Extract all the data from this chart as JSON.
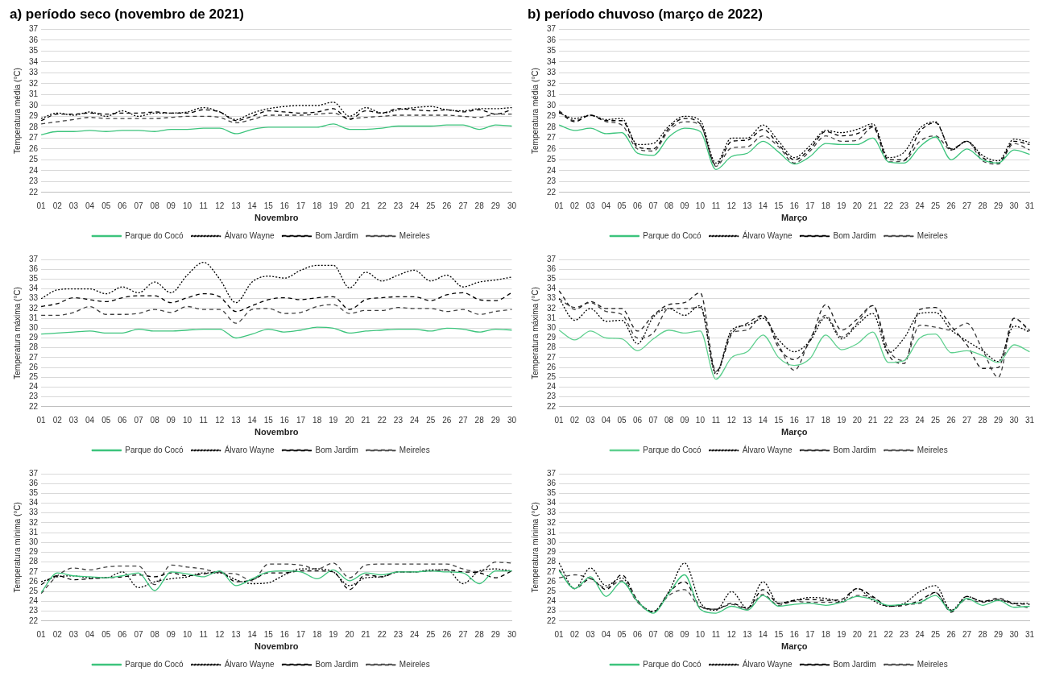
{
  "chart_data": [
    {
      "type": "line",
      "title": "a) período seco (novembro de 2021)",
      "xlabel": "Novembro",
      "ylabel": "Temperatura média (°C)",
      "categories": [
        "01",
        "02",
        "03",
        "04",
        "05",
        "06",
        "07",
        "08",
        "09",
        "10",
        "11",
        "12",
        "13",
        "14",
        "15",
        "16",
        "17",
        "18",
        "19",
        "20",
        "21",
        "22",
        "23",
        "24",
        "25",
        "26",
        "27",
        "28",
        "29",
        "30"
      ],
      "ylim": [
        22,
        37
      ],
      "yticks": [
        22,
        23,
        24,
        25,
        26,
        27,
        28,
        29,
        30,
        31,
        32,
        33,
        34,
        35,
        36,
        37
      ],
      "grid": "y",
      "legend": "bottom",
      "marker": "none",
      "series": [
        {
          "name": "Parque do Cocó",
          "color": "#3cc47c",
          "line_style": "solid",
          "values": [
            27.3,
            27.6,
            27.6,
            27.7,
            27.6,
            27.7,
            27.7,
            27.6,
            27.8,
            27.8,
            27.9,
            27.9,
            27.4,
            27.8,
            28.0,
            28.0,
            28.0,
            28.0,
            28.3,
            27.8,
            27.8,
            27.9,
            28.1,
            28.1,
            28.1,
            28.2,
            28.2,
            27.8,
            28.2,
            28.1
          ]
        },
        {
          "name": "Álvaro Wayne",
          "color": "#000000",
          "line_style": "dotted",
          "values": [
            28.8,
            29.3,
            29.1,
            29.4,
            29.0,
            29.5,
            29.0,
            29.3,
            29.3,
            29.4,
            29.8,
            29.4,
            28.7,
            29.3,
            29.7,
            29.9,
            30.0,
            30.0,
            30.3,
            29.0,
            29.8,
            29.3,
            29.6,
            29.8,
            29.9,
            29.6,
            29.5,
            29.7,
            29.7,
            29.8
          ]
        },
        {
          "name": "Bom Jardim",
          "color": "#000000",
          "line_style": "dashed",
          "values": [
            28.6,
            29.2,
            29.2,
            29.3,
            29.2,
            29.3,
            29.3,
            29.4,
            29.3,
            29.3,
            29.6,
            29.4,
            28.6,
            29.0,
            29.5,
            29.4,
            29.3,
            29.4,
            29.7,
            28.7,
            29.5,
            29.3,
            29.7,
            29.6,
            29.5,
            29.6,
            29.4,
            29.6,
            29.2,
            29.6
          ]
        },
        {
          "name": "Meireles",
          "color": "#404040",
          "line_style": "dashed",
          "values": [
            28.3,
            28.5,
            28.7,
            28.9,
            28.8,
            28.8,
            28.8,
            28.8,
            28.9,
            29.0,
            29.0,
            28.9,
            28.4,
            28.7,
            29.1,
            29.1,
            29.1,
            29.2,
            29.3,
            28.8,
            28.9,
            29.0,
            29.1,
            29.1,
            29.1,
            29.1,
            29.0,
            28.9,
            29.2,
            29.2
          ]
        }
      ]
    },
    {
      "type": "line",
      "title": "b) período chuvoso (março de 2022)",
      "xlabel": "Março",
      "ylabel": "Temperatura média (°C)",
      "categories": [
        "01",
        "02",
        "03",
        "04",
        "05",
        "06",
        "07",
        "08",
        "09",
        "10",
        "11",
        "12",
        "13",
        "14",
        "15",
        "16",
        "17",
        "18",
        "19",
        "20",
        "21",
        "22",
        "23",
        "24",
        "25",
        "26",
        "27",
        "28",
        "29",
        "30",
        "31"
      ],
      "ylim": [
        22,
        37
      ],
      "yticks": [
        22,
        23,
        24,
        25,
        26,
        27,
        28,
        29,
        30,
        31,
        32,
        33,
        34,
        35,
        36,
        37
      ],
      "grid": "y",
      "legend": "bottom",
      "marker": "none",
      "series": [
        {
          "name": "Parque do Cocó",
          "color": "#3cc47c",
          "line_style": "solid",
          "values": [
            28.2,
            27.7,
            27.9,
            27.4,
            27.5,
            25.6,
            25.4,
            27.1,
            27.9,
            27.6,
            24.1,
            25.3,
            25.6,
            26.7,
            25.7,
            24.6,
            25.3,
            26.5,
            26.4,
            26.4,
            27.0,
            24.8,
            24.7,
            26.2,
            27.1,
            25.0,
            26.0,
            25.0,
            24.7,
            25.9,
            25.5
          ]
        },
        {
          "name": "Álvaro Wayne",
          "color": "#000000",
          "line_style": "dotted",
          "values": [
            29.3,
            28.8,
            29.1,
            28.7,
            28.8,
            26.4,
            26.5,
            28.1,
            29.0,
            28.6,
            24.7,
            27.0,
            27.0,
            28.2,
            26.7,
            25.2,
            26.3,
            27.7,
            27.5,
            27.8,
            28.3,
            25.2,
            25.7,
            27.9,
            28.5,
            25.9,
            26.7,
            25.4,
            24.9,
            26.9,
            26.6
          ]
        },
        {
          "name": "Bom Jardim",
          "color": "#000000",
          "line_style": "dashed",
          "values": [
            29.4,
            28.5,
            29.1,
            28.6,
            28.6,
            26.2,
            26.0,
            27.9,
            28.8,
            28.3,
            24.5,
            26.7,
            26.8,
            27.8,
            26.4,
            25.0,
            26.0,
            27.6,
            27.2,
            27.4,
            28.1,
            25.0,
            25.0,
            27.6,
            28.4,
            26.0,
            26.7,
            25.2,
            24.7,
            26.7,
            26.4
          ]
        },
        {
          "name": "Meireles",
          "color": "#404040",
          "line_style": "dashed",
          "values": [
            29.5,
            28.6,
            29.1,
            28.5,
            28.2,
            26.0,
            25.8,
            27.7,
            28.5,
            28.2,
            24.4,
            26.1,
            26.2,
            27.2,
            26.2,
            24.7,
            25.8,
            27.2,
            26.7,
            26.8,
            28.0,
            24.8,
            24.9,
            26.7,
            27.2,
            25.9,
            26.7,
            24.9,
            24.6,
            26.5,
            25.9
          ]
        }
      ]
    },
    {
      "type": "line",
      "xlabel": "Novembro",
      "ylabel": "Temperatura máxima (°C)",
      "categories": [
        "01",
        "02",
        "03",
        "04",
        "05",
        "06",
        "07",
        "08",
        "09",
        "10",
        "11",
        "12",
        "13",
        "14",
        "15",
        "16",
        "17",
        "18",
        "19",
        "20",
        "21",
        "22",
        "23",
        "24",
        "25",
        "26",
        "27",
        "28",
        "29",
        "30"
      ],
      "ylim": [
        22,
        37
      ],
      "yticks": [
        22,
        23,
        24,
        25,
        26,
        27,
        28,
        29,
        30,
        31,
        32,
        33,
        34,
        35,
        36,
        37
      ],
      "grid": "y",
      "legend": "bottom",
      "marker": "none",
      "series": [
        {
          "name": "Parque do Cocó",
          "color": "#3cc47c",
          "line_style": "solid",
          "values": [
            29.4,
            29.5,
            29.6,
            29.7,
            29.5,
            29.5,
            29.9,
            29.7,
            29.7,
            29.8,
            29.9,
            29.9,
            29.0,
            29.4,
            29.9,
            29.6,
            29.8,
            30.1,
            30.0,
            29.5,
            29.7,
            29.8,
            29.9,
            29.9,
            29.7,
            30.0,
            29.9,
            29.6,
            29.9,
            29.8
          ]
        },
        {
          "name": "Álvaro Wayne",
          "color": "#000000",
          "line_style": "dotted",
          "values": [
            33.0,
            33.9,
            34.0,
            34.0,
            33.5,
            34.2,
            33.6,
            34.7,
            33.6,
            35.4,
            36.7,
            35.0,
            32.6,
            34.7,
            35.3,
            35.1,
            35.9,
            36.4,
            36.4,
            34.1,
            35.7,
            34.8,
            35.4,
            35.9,
            34.8,
            35.4,
            34.2,
            34.7,
            34.9,
            35.2
          ]
        },
        {
          "name": "Bom Jardim",
          "color": "#000000",
          "line_style": "dashed",
          "values": [
            32.2,
            32.5,
            33.1,
            32.9,
            32.7,
            33.1,
            33.3,
            33.3,
            32.6,
            33.1,
            33.5,
            33.2,
            31.7,
            32.3,
            32.9,
            33.1,
            32.9,
            33.1,
            33.2,
            31.9,
            32.9,
            33.1,
            33.2,
            33.2,
            32.8,
            33.4,
            33.6,
            32.9,
            32.8,
            33.6
          ]
        },
        {
          "name": "Meireles",
          "color": "#404040",
          "line_style": "dashed",
          "values": [
            31.3,
            31.3,
            31.6,
            32.2,
            31.4,
            31.4,
            31.5,
            31.9,
            31.6,
            32.2,
            31.9,
            31.9,
            30.5,
            31.9,
            32.0,
            31.5,
            31.6,
            32.2,
            32.4,
            31.5,
            31.8,
            31.8,
            32.1,
            32.0,
            32.0,
            31.7,
            31.9,
            31.4,
            31.7,
            31.9
          ]
        }
      ]
    },
    {
      "type": "line",
      "xlabel": "Março",
      "ylabel": "Temperatura máxima (°C)",
      "categories": [
        "01",
        "02",
        "03",
        "04",
        "05",
        "06",
        "07",
        "08",
        "09",
        "10",
        "11",
        "12",
        "13",
        "14",
        "15",
        "16",
        "17",
        "18",
        "19",
        "20",
        "21",
        "22",
        "23",
        "24",
        "25",
        "26",
        "27",
        "28",
        "29",
        "30",
        "31"
      ],
      "ylim": [
        22,
        37
      ],
      "yticks": [
        22,
        23,
        24,
        25,
        26,
        27,
        28,
        29,
        30,
        31,
        32,
        33,
        34,
        35,
        36,
        37
      ],
      "grid": "y",
      "legend": "bottom",
      "marker": "none",
      "series": [
        {
          "name": "Parque do Cocó",
          "color": "#5fd08f",
          "line_style": "solid",
          "values": [
            29.8,
            28.8,
            29.7,
            29.0,
            28.9,
            27.7,
            28.9,
            29.8,
            29.5,
            29.7,
            24.8,
            27.0,
            27.6,
            29.3,
            27.0,
            26.2,
            26.9,
            29.3,
            27.8,
            28.4,
            29.6,
            26.5,
            26.7,
            29.0,
            29.4,
            27.5,
            27.7,
            27.2,
            26.5,
            28.3,
            27.6
          ]
        },
        {
          "name": "Álvaro Wayne",
          "color": "#000000",
          "line_style": "dotted",
          "values": [
            33.0,
            30.8,
            32.0,
            30.7,
            30.8,
            28.4,
            31.1,
            32.0,
            31.3,
            32.3,
            25.3,
            29.8,
            30.3,
            31.0,
            28.8,
            27.6,
            28.7,
            31.1,
            28.9,
            30.3,
            31.5,
            27.5,
            29.0,
            31.5,
            31.6,
            29.8,
            28.7,
            27.7,
            26.6,
            30.2,
            29.6
          ]
        },
        {
          "name": "Bom Jardim",
          "color": "#202020",
          "line_style": "dashed",
          "values": [
            33.8,
            31.9,
            32.7,
            32.0,
            32.0,
            29.7,
            31.3,
            32.4,
            32.6,
            33.6,
            25.6,
            29.4,
            30.5,
            31.3,
            28.0,
            26.8,
            28.7,
            32.4,
            29.8,
            30.9,
            32.3,
            27.3,
            26.4,
            31.9,
            32.1,
            30.2,
            28.3,
            25.9,
            26.0,
            31.0,
            29.8
          ]
        },
        {
          "name": "Meireles",
          "color": "#404040",
          "line_style": "dashed",
          "values": [
            33.0,
            32.1,
            32.6,
            31.7,
            31.4,
            29.0,
            29.5,
            32.0,
            32.0,
            32.1,
            25.5,
            29.5,
            29.8,
            31.3,
            28.3,
            25.7,
            28.9,
            31.3,
            29.1,
            30.5,
            32.3,
            27.8,
            26.7,
            30.3,
            30.1,
            29.8,
            30.5,
            27.8,
            25.0,
            31.0,
            29.7
          ]
        }
      ]
    },
    {
      "type": "line",
      "xlabel": "Novembro",
      "ylabel": "Temperatura mínima (°C)",
      "categories": [
        "01",
        "02",
        "03",
        "04",
        "05",
        "06",
        "07",
        "08",
        "09",
        "10",
        "11",
        "12",
        "13",
        "14",
        "15",
        "16",
        "17",
        "18",
        "19",
        "20",
        "21",
        "22",
        "23",
        "24",
        "25",
        "26",
        "27",
        "28",
        "29",
        "30"
      ],
      "ylim": [
        22,
        37
      ],
      "yticks": [
        22,
        23,
        24,
        25,
        26,
        27,
        28,
        29,
        30,
        31,
        32,
        33,
        34,
        35,
        36,
        37
      ],
      "grid": "y",
      "legend": "bottom",
      "marker": "none",
      "series": [
        {
          "name": "Parque do Cocó",
          "color": "#3cc47c",
          "line_style": "solid",
          "values": [
            24.9,
            26.9,
            26.6,
            26.5,
            26.4,
            26.6,
            26.9,
            25.1,
            27.0,
            26.8,
            26.5,
            27.1,
            25.6,
            26.3,
            27.0,
            27.1,
            27.0,
            26.3,
            27.2,
            26.1,
            26.9,
            26.7,
            27.0,
            27.0,
            27.1,
            27.0,
            26.9,
            25.8,
            27.1,
            27.1
          ]
        },
        {
          "name": "Álvaro Wayne",
          "color": "#000000",
          "line_style": "dotted",
          "values": [
            26.0,
            26.5,
            26.6,
            26.4,
            26.4,
            27.0,
            25.4,
            26.0,
            26.3,
            26.5,
            26.9,
            26.9,
            26.2,
            25.8,
            25.9,
            26.7,
            27.3,
            27.3,
            27.0,
            25.6,
            26.4,
            26.5,
            27.0,
            27.0,
            27.2,
            27.2,
            25.8,
            27.1,
            27.3,
            27.1
          ]
        },
        {
          "name": "Bom Jardim",
          "color": "#000000",
          "line_style": "dashed",
          "values": [
            25.7,
            26.6,
            26.2,
            26.3,
            26.4,
            26.5,
            26.7,
            26.5,
            26.9,
            26.6,
            26.8,
            27.0,
            26.0,
            26.2,
            26.9,
            26.9,
            27.1,
            27.1,
            27.0,
            25.2,
            26.7,
            26.5,
            27.0,
            27.0,
            27.1,
            27.2,
            27.0,
            26.9,
            26.4,
            27.1
          ]
        },
        {
          "name": "Meireles",
          "color": "#404040",
          "line_style": "dashed",
          "values": [
            24.8,
            26.6,
            27.4,
            27.2,
            27.5,
            27.6,
            27.6,
            25.7,
            27.7,
            27.5,
            27.3,
            26.9,
            26.8,
            26.1,
            27.8,
            27.8,
            27.7,
            27.3,
            27.9,
            26.4,
            27.7,
            27.8,
            27.8,
            27.8,
            27.8,
            27.8,
            27.3,
            27.0,
            28.0,
            27.9
          ]
        }
      ]
    },
    {
      "type": "line",
      "xlabel": "Março",
      "ylabel": "Temperatura mínima (°C)",
      "categories": [
        "01",
        "02",
        "03",
        "04",
        "05",
        "06",
        "07",
        "08",
        "09",
        "10",
        "11",
        "12",
        "13",
        "14",
        "15",
        "16",
        "17",
        "18",
        "19",
        "20",
        "21",
        "22",
        "23",
        "24",
        "25",
        "26",
        "27",
        "28",
        "29",
        "30",
        "31"
      ],
      "ylim": [
        22,
        37
      ],
      "yticks": [
        22,
        23,
        24,
        25,
        26,
        27,
        28,
        29,
        30,
        31,
        32,
        33,
        34,
        35,
        36,
        37
      ],
      "grid": "y",
      "legend": "bottom",
      "marker": "none",
      "series": [
        {
          "name": "Parque do Cocó",
          "color": "#3cc47c",
          "line_style": "solid",
          "values": [
            27.1,
            25.3,
            26.5,
            24.5,
            26.0,
            24.0,
            22.8,
            24.8,
            26.7,
            23.2,
            22.8,
            23.5,
            23.1,
            24.6,
            23.5,
            23.7,
            23.8,
            23.6,
            23.9,
            24.5,
            24.2,
            23.6,
            23.7,
            23.9,
            24.6,
            23.0,
            24.3,
            23.6,
            24.1,
            23.4,
            23.5
          ]
        },
        {
          "name": "Álvaro Wayne",
          "color": "#000000",
          "line_style": "dotted",
          "values": [
            27.9,
            25.3,
            27.4,
            25.6,
            26.4,
            24.0,
            23.0,
            25.0,
            27.9,
            23.9,
            23.1,
            25.0,
            23.3,
            26.0,
            23.8,
            24.1,
            24.4,
            24.3,
            24.0,
            25.3,
            24.1,
            23.5,
            23.8,
            25.0,
            25.6,
            23.1,
            24.5,
            24.0,
            24.1,
            23.8,
            23.8
          ]
        },
        {
          "name": "Bom Jardim",
          "color": "#000000",
          "line_style": "dashed",
          "values": [
            27.2,
            25.3,
            26.3,
            25.2,
            26.7,
            24.1,
            22.9,
            24.9,
            26.0,
            23.5,
            23.2,
            23.8,
            23.3,
            25.2,
            23.8,
            24.1,
            24.2,
            24.1,
            24.2,
            25.3,
            24.5,
            23.5,
            23.6,
            24.1,
            24.9,
            22.9,
            24.5,
            24.0,
            24.3,
            23.8,
            23.7
          ]
        },
        {
          "name": "Meireles",
          "color": "#404040",
          "line_style": "dashed",
          "values": [
            26.4,
            26.7,
            26.3,
            25.4,
            26.1,
            23.9,
            22.9,
            24.6,
            25.2,
            23.4,
            23.2,
            23.7,
            23.2,
            24.7,
            23.6,
            24.0,
            23.9,
            23.9,
            23.9,
            24.6,
            24.4,
            23.5,
            23.7,
            23.8,
            24.9,
            23.1,
            24.2,
            23.9,
            24.2,
            23.7,
            23.3
          ]
        }
      ]
    }
  ]
}
